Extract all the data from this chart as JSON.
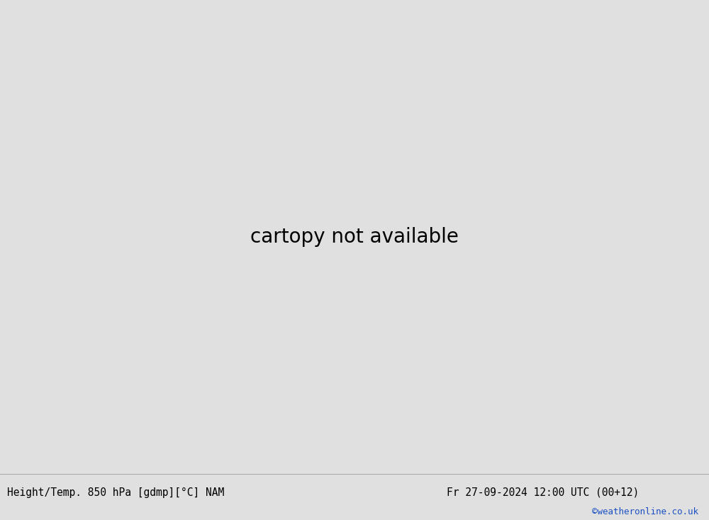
{
  "title_left": "Height/Temp. 850 hPa [gdmp][°C] NAM",
  "title_right": "Fr 27-09-2024 12:00 UTC (00+12)",
  "credit": "©weatheronline.co.uk",
  "bg_color": "#e0e0e0",
  "land_color": "#d2d2d2",
  "green_fill_color": "#b8e898",
  "figure_width": 10.0,
  "figure_height": 7.33,
  "title_fontsize": 10.5,
  "credit_fontsize": 9,
  "cyan_color": "#00b4b4",
  "orange_color": "#e08020",
  "red_color": "#d02020",
  "magenta_color": "#cc00aa",
  "green_line_color": "#78be00",
  "black_contour_lw": 2.0,
  "temp_contour_lw": 1.4
}
